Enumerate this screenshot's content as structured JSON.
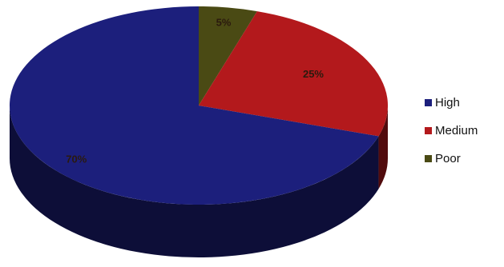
{
  "chart_data": {
    "type": "pie",
    "categories": [
      "High",
      "Medium",
      "Poor"
    ],
    "values": [
      70,
      25,
      5
    ],
    "colors": [
      "#1c1f7c",
      "#b3191c",
      "#4a4a14"
    ],
    "data_labels": [
      "70%",
      "25%",
      "5%"
    ],
    "legend_position": "right",
    "three_d": true
  },
  "legend": {
    "items": [
      {
        "label": "High",
        "color": "#1c1f7c"
      },
      {
        "label": "Medium",
        "color": "#b3191c"
      },
      {
        "label": "Poor",
        "color": "#4a4a14"
      }
    ]
  }
}
